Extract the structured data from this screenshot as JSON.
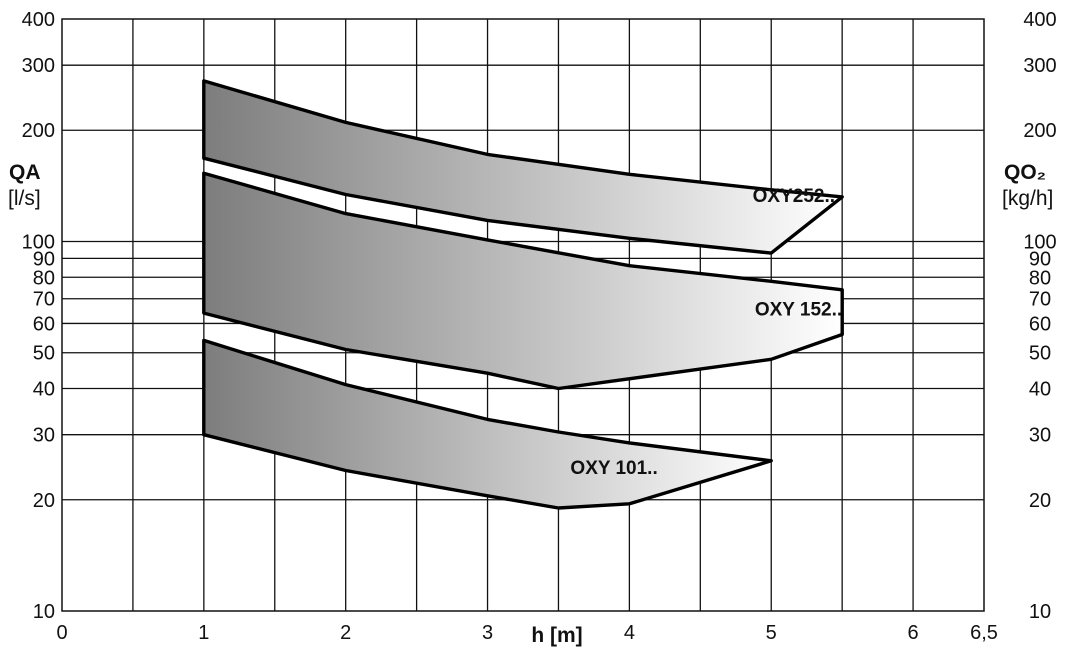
{
  "chart_data": {
    "type": "area",
    "x_scale": "linear",
    "y_scale": "log",
    "xlim": [
      0,
      6.5
    ],
    "ylim": [
      10,
      400
    ],
    "x_ticks": [
      0,
      0.5,
      1,
      1.5,
      2,
      2.5,
      3,
      3.5,
      4,
      4.5,
      5,
      5.5,
      6,
      6.5
    ],
    "x_tick_labels": [
      {
        "x": 0,
        "label": "0"
      },
      {
        "x": 1,
        "label": "1"
      },
      {
        "x": 2,
        "label": "2"
      },
      {
        "x": 3,
        "label": "3"
      },
      {
        "x": 4,
        "label": "4"
      },
      {
        "x": 5,
        "label": "5"
      },
      {
        "x": 6,
        "label": "6"
      },
      {
        "x": 6.5,
        "label": "6,5"
      }
    ],
    "y_ticks": [
      10,
      20,
      30,
      40,
      50,
      60,
      70,
      80,
      90,
      100,
      200,
      300,
      400
    ],
    "y_tick_labels": [
      {
        "y": 10,
        "label": "10"
      },
      {
        "y": 20,
        "label": "20"
      },
      {
        "y": 30,
        "label": "30"
      },
      {
        "y": 40,
        "label": "40"
      },
      {
        "y": 50,
        "label": "50"
      },
      {
        "y": 60,
        "label": "60"
      },
      {
        "y": 70,
        "label": "70"
      },
      {
        "y": 80,
        "label": "80"
      },
      {
        "y": 90,
        "label": "90"
      },
      {
        "y": 100,
        "label": "100"
      },
      {
        "y": 200,
        "label": "200"
      },
      {
        "y": 300,
        "label": "300"
      },
      {
        "y": 400,
        "label": "400"
      }
    ],
    "xlabel": "h [m]",
    "ylabel_left": "QA",
    "ylabel_left_unit": "[l/s]",
    "ylabel_right": "QO₂",
    "ylabel_right_unit": "[kg/h]",
    "grid": true,
    "fill_gradient": [
      "#7d7d7d",
      "#ffffff"
    ],
    "series": [
      {
        "name": "OXY252..",
        "label_anchor": {
          "x": 5.45,
          "y": 128
        },
        "upper": [
          [
            1,
            272
          ],
          [
            2,
            210
          ],
          [
            3,
            172
          ],
          [
            4,
            152
          ],
          [
            5,
            138
          ],
          [
            5.5,
            132
          ]
        ],
        "lower": [
          [
            1,
            168
          ],
          [
            2,
            134
          ],
          [
            3,
            114
          ],
          [
            4,
            102
          ],
          [
            5,
            93
          ]
        ]
      },
      {
        "name": "OXY 152..",
        "label_anchor": {
          "x": 5.5,
          "y": 63
        },
        "upper": [
          [
            1,
            153
          ],
          [
            2,
            119
          ],
          [
            3,
            101
          ],
          [
            4,
            86
          ],
          [
            5,
            78
          ],
          [
            5.5,
            74
          ]
        ],
        "lower": [
          [
            1,
            64
          ],
          [
            2,
            51
          ],
          [
            3,
            44
          ],
          [
            3.5,
            40
          ],
          [
            5,
            48
          ],
          [
            5.5,
            56
          ]
        ]
      },
      {
        "name": "OXY 101..",
        "label_anchor": {
          "x": 4.2,
          "y": 23.5
        },
        "upper": [
          [
            1,
            54
          ],
          [
            2,
            41
          ],
          [
            3,
            33
          ],
          [
            3.5,
            30.5
          ],
          [
            4,
            28.5
          ],
          [
            5,
            25.5
          ]
        ],
        "lower": [
          [
            1,
            30
          ],
          [
            2,
            24
          ],
          [
            3,
            20.5
          ],
          [
            3.5,
            19
          ],
          [
            4,
            19.5
          ]
        ]
      }
    ]
  }
}
